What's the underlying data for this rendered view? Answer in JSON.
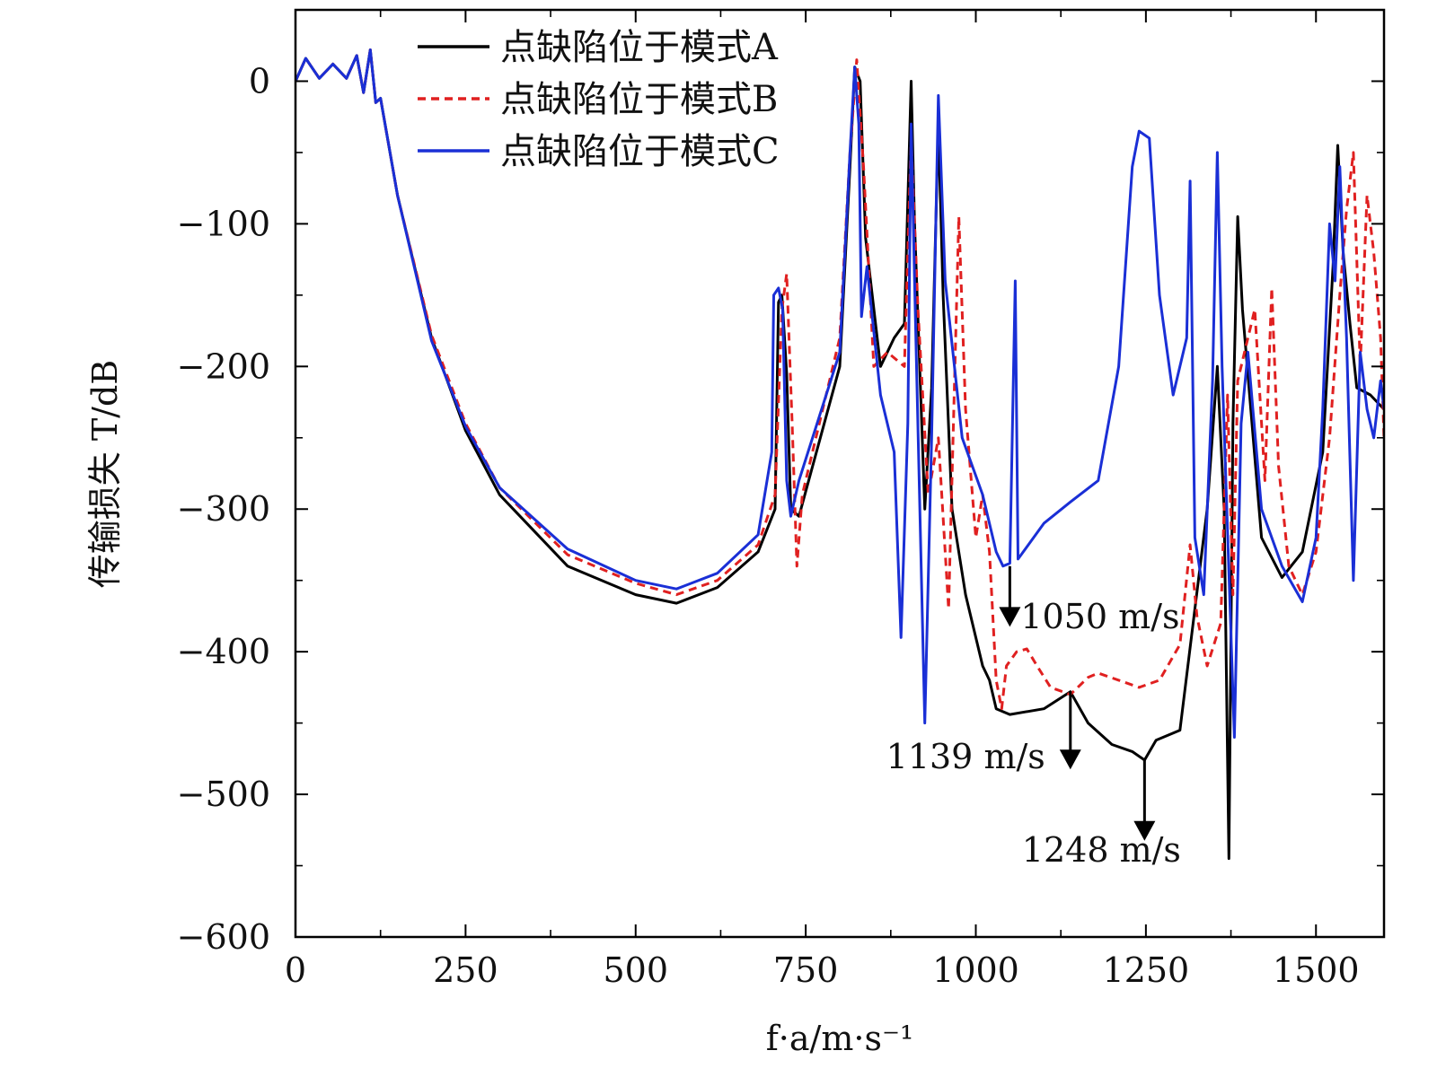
{
  "chart_data": {
    "type": "line",
    "xlabel": "f·a/m·s⁻¹",
    "ylabel": "传输损失 T/dB",
    "xlim": [
      0,
      1600
    ],
    "ylim": [
      -600,
      50
    ],
    "xticks": [
      0,
      250,
      500,
      750,
      1000,
      1250,
      1500
    ],
    "yticks": [
      0,
      -100,
      -200,
      -300,
      -400,
      -500,
      -600
    ],
    "ytick_labels": [
      "0",
      "−100",
      "−200",
      "−300",
      "−400",
      "−500",
      "−600"
    ],
    "legend_position": "top-center",
    "series": [
      {
        "name": "点缺陷位于模式A",
        "color": "#000000",
        "dash": "solid",
        "points": [
          [
            0,
            0
          ],
          [
            15,
            16
          ],
          [
            35,
            2
          ],
          [
            55,
            12
          ],
          [
            75,
            2
          ],
          [
            90,
            18
          ],
          [
            100,
            -8
          ],
          [
            110,
            22
          ],
          [
            118,
            -15
          ],
          [
            125,
            -12
          ],
          [
            150,
            -80
          ],
          [
            200,
            -180
          ],
          [
            250,
            -245
          ],
          [
            300,
            -290
          ],
          [
            400,
            -340
          ],
          [
            500,
            -360
          ],
          [
            560,
            -366
          ],
          [
            620,
            -355
          ],
          [
            680,
            -330
          ],
          [
            705,
            -300
          ],
          [
            710,
            -155
          ],
          [
            715,
            -150
          ],
          [
            722,
            -205
          ],
          [
            728,
            -300
          ],
          [
            740,
            -305
          ],
          [
            800,
            -200
          ],
          [
            815,
            -60
          ],
          [
            822,
            10
          ],
          [
            830,
            0
          ],
          [
            838,
            -110
          ],
          [
            860,
            -200
          ],
          [
            880,
            -180
          ],
          [
            895,
            -170
          ],
          [
            905,
            0
          ],
          [
            910,
            -100
          ],
          [
            925,
            -300
          ],
          [
            935,
            -215
          ],
          [
            945,
            -30
          ],
          [
            952,
            -150
          ],
          [
            965,
            -300
          ],
          [
            985,
            -360
          ],
          [
            1010,
            -410
          ],
          [
            1020,
            -420
          ],
          [
            1030,
            -440
          ],
          [
            1050,
            -444
          ],
          [
            1100,
            -440
          ],
          [
            1139,
            -428
          ],
          [
            1165,
            -450
          ],
          [
            1200,
            -465
          ],
          [
            1230,
            -470
          ],
          [
            1248,
            -476
          ],
          [
            1265,
            -462
          ],
          [
            1300,
            -455
          ],
          [
            1340,
            -300
          ],
          [
            1355,
            -200
          ],
          [
            1365,
            -300
          ],
          [
            1372,
            -545
          ],
          [
            1378,
            -240
          ],
          [
            1385,
            -95
          ],
          [
            1392,
            -160
          ],
          [
            1420,
            -320
          ],
          [
            1450,
            -348
          ],
          [
            1480,
            -330
          ],
          [
            1510,
            -260
          ],
          [
            1525,
            -130
          ],
          [
            1532,
            -45
          ],
          [
            1540,
            -120
          ],
          [
            1550,
            -170
          ],
          [
            1560,
            -215
          ],
          [
            1580,
            -220
          ],
          [
            1600,
            -230
          ]
        ]
      },
      {
        "name": "点缺陷位于模式B",
        "color": "#e02020",
        "dash": "dashed",
        "points": [
          [
            0,
            0
          ],
          [
            15,
            16
          ],
          [
            35,
            2
          ],
          [
            55,
            12
          ],
          [
            75,
            2
          ],
          [
            90,
            18
          ],
          [
            100,
            -8
          ],
          [
            110,
            22
          ],
          [
            118,
            -15
          ],
          [
            125,
            -12
          ],
          [
            150,
            -80
          ],
          [
            200,
            -178
          ],
          [
            250,
            -240
          ],
          [
            300,
            -285
          ],
          [
            400,
            -332
          ],
          [
            500,
            -352
          ],
          [
            560,
            -360
          ],
          [
            620,
            -350
          ],
          [
            680,
            -325
          ],
          [
            705,
            -290
          ],
          [
            715,
            -160
          ],
          [
            722,
            -135
          ],
          [
            730,
            -240
          ],
          [
            737,
            -340
          ],
          [
            745,
            -290
          ],
          [
            800,
            -180
          ],
          [
            815,
            -50
          ],
          [
            825,
            15
          ],
          [
            835,
            -60
          ],
          [
            850,
            -200
          ],
          [
            870,
            -190
          ],
          [
            895,
            -200
          ],
          [
            905,
            -40
          ],
          [
            915,
            -160
          ],
          [
            930,
            -290
          ],
          [
            945,
            -250
          ],
          [
            960,
            -370
          ],
          [
            975,
            -95
          ],
          [
            985,
            -230
          ],
          [
            1000,
            -320
          ],
          [
            1010,
            -290
          ],
          [
            1020,
            -330
          ],
          [
            1030,
            -420
          ],
          [
            1038,
            -440
          ],
          [
            1045,
            -410
          ],
          [
            1060,
            -400
          ],
          [
            1075,
            -398
          ],
          [
            1090,
            -410
          ],
          [
            1110,
            -425
          ],
          [
            1139,
            -430
          ],
          [
            1165,
            -418
          ],
          [
            1180,
            -415
          ],
          [
            1210,
            -420
          ],
          [
            1240,
            -425
          ],
          [
            1270,
            -420
          ],
          [
            1300,
            -395
          ],
          [
            1315,
            -325
          ],
          [
            1325,
            -375
          ],
          [
            1340,
            -410
          ],
          [
            1360,
            -380
          ],
          [
            1370,
            -220
          ],
          [
            1378,
            -360
          ],
          [
            1385,
            -210
          ],
          [
            1395,
            -190
          ],
          [
            1410,
            -160
          ],
          [
            1425,
            -280
          ],
          [
            1435,
            -145
          ],
          [
            1445,
            -270
          ],
          [
            1460,
            -340
          ],
          [
            1480,
            -360
          ],
          [
            1500,
            -330
          ],
          [
            1520,
            -250
          ],
          [
            1535,
            -150
          ],
          [
            1545,
            -90
          ],
          [
            1555,
            -50
          ],
          [
            1565,
            -200
          ],
          [
            1575,
            -80
          ],
          [
            1585,
            -120
          ],
          [
            1595,
            -180
          ],
          [
            1600,
            -250
          ]
        ]
      },
      {
        "name": "点缺陷位于模式C",
        "color": "#1a2fd6",
        "dash": "solid",
        "points": [
          [
            0,
            0
          ],
          [
            15,
            16
          ],
          [
            35,
            2
          ],
          [
            55,
            12
          ],
          [
            75,
            2
          ],
          [
            90,
            18
          ],
          [
            100,
            -8
          ],
          [
            110,
            22
          ],
          [
            118,
            -15
          ],
          [
            125,
            -12
          ],
          [
            150,
            -80
          ],
          [
            200,
            -182
          ],
          [
            250,
            -242
          ],
          [
            300,
            -285
          ],
          [
            400,
            -328
          ],
          [
            500,
            -350
          ],
          [
            560,
            -356
          ],
          [
            620,
            -345
          ],
          [
            680,
            -318
          ],
          [
            700,
            -260
          ],
          [
            703,
            -150
          ],
          [
            710,
            -145
          ],
          [
            716,
            -160
          ],
          [
            722,
            -280
          ],
          [
            728,
            -305
          ],
          [
            740,
            -280
          ],
          [
            800,
            -190
          ],
          [
            815,
            -50
          ],
          [
            822,
            10
          ],
          [
            828,
            -30
          ],
          [
            832,
            -165
          ],
          [
            840,
            -130
          ],
          [
            860,
            -220
          ],
          [
            880,
            -260
          ],
          [
            890,
            -390
          ],
          [
            900,
            -240
          ],
          [
            905,
            -30
          ],
          [
            910,
            -140
          ],
          [
            925,
            -450
          ],
          [
            935,
            -250
          ],
          [
            945,
            -10
          ],
          [
            955,
            -140
          ],
          [
            980,
            -250
          ],
          [
            1010,
            -290
          ],
          [
            1030,
            -330
          ],
          [
            1040,
            -340
          ],
          [
            1050,
            -338
          ],
          [
            1058,
            -140
          ],
          [
            1062,
            -335
          ],
          [
            1100,
            -310
          ],
          [
            1139,
            -295
          ],
          [
            1180,
            -280
          ],
          [
            1210,
            -200
          ],
          [
            1230,
            -60
          ],
          [
            1240,
            -35
          ],
          [
            1255,
            -40
          ],
          [
            1270,
            -150
          ],
          [
            1290,
            -220
          ],
          [
            1310,
            -180
          ],
          [
            1315,
            -70
          ],
          [
            1322,
            -320
          ],
          [
            1335,
            -360
          ],
          [
            1348,
            -210
          ],
          [
            1355,
            -50
          ],
          [
            1362,
            -200
          ],
          [
            1380,
            -460
          ],
          [
            1390,
            -240
          ],
          [
            1400,
            -190
          ],
          [
            1420,
            -300
          ],
          [
            1450,
            -340
          ],
          [
            1480,
            -365
          ],
          [
            1500,
            -320
          ],
          [
            1510,
            -230
          ],
          [
            1520,
            -100
          ],
          [
            1528,
            -140
          ],
          [
            1535,
            -60
          ],
          [
            1545,
            -180
          ],
          [
            1555,
            -350
          ],
          [
            1565,
            -190
          ],
          [
            1575,
            -230
          ],
          [
            1585,
            -250
          ],
          [
            1595,
            -210
          ],
          [
            1600,
            -230
          ]
        ]
      }
    ],
    "annotations": [
      {
        "text": "1050 m/s",
        "x": 1050,
        "y_from": -340,
        "y_to": -380
      },
      {
        "text": "1139 m/s",
        "x": 1139,
        "y_from": -428,
        "y_to": -480
      },
      {
        "text": "1248 m/s",
        "x": 1248,
        "y_from": -476,
        "y_to": -530
      }
    ]
  }
}
